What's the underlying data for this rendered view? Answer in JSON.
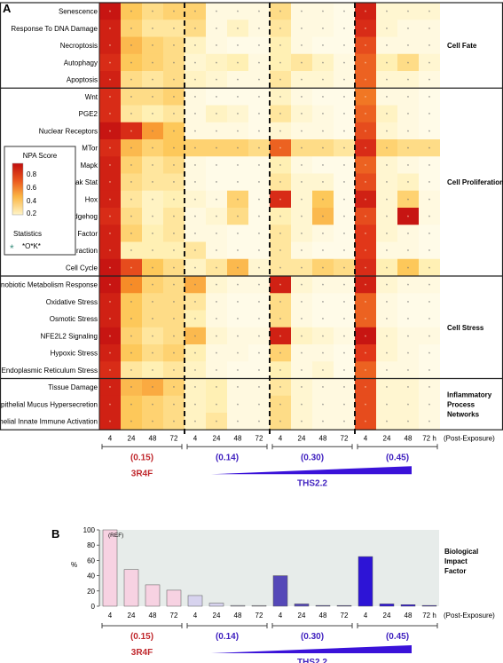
{
  "panel_a": {
    "letter": "A",
    "legend": {
      "title": "NPA Score",
      "ticks": [
        "0.8",
        "0.6",
        "0.4",
        "0.2"
      ],
      "stats_title": "Statistics",
      "stats_symbol": "*",
      "stats_label": "*O*K*"
    },
    "x_labels": [
      "4",
      "24",
      "48",
      "72",
      "4",
      "24",
      "48",
      "72",
      "4",
      "24",
      "48",
      "72",
      "4",
      "24",
      "48",
      "72 h"
    ],
    "x_suffix": "(Post-Exposure)",
    "group_labels": [
      "(0.15)",
      "(0.14)",
      "(0.30)",
      "(0.45)"
    ],
    "product_labels": [
      "3R4F",
      "THS2.2"
    ],
    "sections": [
      {
        "label": "Cell Fate",
        "rows": [
          "Senescence",
          "Response To DNA Damage",
          "Necroptosis",
          "Autophagy",
          "Apoptosis"
        ]
      },
      {
        "label": "Cell Proliferation",
        "rows": [
          "Wnt",
          "PGE2",
          "Nuclear Receptors",
          "MTor",
          "Mapk",
          "Jak Stat",
          "Hox",
          "Hedgehog",
          "Growth Factor",
          "Cell Interaction",
          "Cell Cycle"
        ]
      },
      {
        "label": "Cell Stress",
        "rows": [
          "Xenobiotic Metabolism Response",
          "Oxidative Stress",
          "Osmotic Stress",
          "NFE2L2 Signaling",
          "Hypoxic Stress",
          "Endoplasmic Reticulum Stress"
        ]
      },
      {
        "label": "Inflammatory Process Networks",
        "label_lines": [
          "Inflammatory",
          "Process",
          "Networks"
        ],
        "rows": [
          "Tissue Damage",
          "Epithelial Mucus Hypersecretion",
          "Epithelial Innate Immune Activation"
        ]
      }
    ]
  },
  "panel_b": {
    "letter": "B",
    "ylabel": "%",
    "ref_label": "(REF)",
    "side_label": [
      "Biological",
      "Impact",
      "Factor"
    ],
    "x_labels": [
      "4",
      "24",
      "48",
      "72",
      "4",
      "24",
      "48",
      "72",
      "4",
      "24",
      "48",
      "72",
      "4",
      "24",
      "48",
      "72 h"
    ],
    "x_suffix": "(Post-Exposure)",
    "group_labels": [
      "(0.15)",
      "(0.14)",
      "(0.30)",
      "(0.45)"
    ],
    "product_labels": [
      "3R4F",
      "THS2.2"
    ]
  },
  "colors": {
    "red_label": "#c0282d",
    "blue_label": "#3e1fbf",
    "heat_high": "#c00d0d",
    "heat_low": "#fffbe6"
  },
  "chart_data": [
    {
      "type": "heatmap",
      "ylabel": "NPA Score",
      "x": [
        "4",
        "24",
        "48",
        "72",
        "4",
        "24",
        "48",
        "72",
        "4",
        "24",
        "48",
        "72",
        "4",
        "24",
        "48",
        "72"
      ],
      "y": [
        "Senescence",
        "Response To DNA Damage",
        "Necroptosis",
        "Autophagy",
        "Apoptosis",
        "Wnt",
        "PGE2",
        "Nuclear Receptors",
        "MTor",
        "Mapk",
        "Jak Stat",
        "Hox",
        "Hedgehog",
        "Growth Factor",
        "Cell Interaction",
        "Cell Cycle",
        "Xenobiotic Metabolism Response",
        "Oxidative Stress",
        "Osmotic Stress",
        "NFE2L2 Signaling",
        "Hypoxic Stress",
        "Endoplasmic Reticulum Stress",
        "Tissue Damage",
        "Epithelial Mucus Hypersecretion",
        "Epithelial Innate Immune Activation"
      ],
      "values": [
        [
          0.95,
          0.4,
          0.3,
          0.35,
          0.35,
          0.05,
          0.05,
          0.05,
          0.3,
          0.05,
          0.05,
          0.02,
          0.9,
          0.1,
          0.1,
          0.1
        ],
        [
          0.9,
          0.35,
          0.25,
          0.25,
          0.3,
          0.05,
          0.15,
          0.05,
          0.25,
          0.05,
          0.05,
          0.02,
          0.85,
          0.1,
          0.05,
          0.05
        ],
        [
          0.9,
          0.45,
          0.35,
          0.3,
          0.15,
          0.05,
          0.02,
          0.02,
          0.2,
          0.05,
          0.02,
          0.02,
          0.75,
          0.05,
          0.05,
          0.05
        ],
        [
          0.85,
          0.4,
          0.35,
          0.3,
          0.1,
          0.15,
          0.2,
          0.05,
          0.2,
          0.25,
          0.15,
          0.05,
          0.7,
          0.2,
          0.3,
          0.1
        ],
        [
          0.9,
          0.3,
          0.25,
          0.3,
          0.15,
          0.1,
          0.05,
          0.05,
          0.25,
          0.1,
          0.1,
          0.05,
          0.7,
          0.1,
          0.1,
          0.05
        ],
        [
          0.85,
          0.3,
          0.3,
          0.35,
          0.05,
          0.02,
          0.02,
          0.02,
          0.15,
          0.05,
          0.02,
          0.02,
          0.65,
          0.05,
          0.05,
          0.02
        ],
        [
          0.85,
          0.25,
          0.2,
          0.25,
          0.05,
          0.15,
          0.1,
          0.02,
          0.25,
          0.1,
          0.05,
          0.02,
          0.7,
          0.15,
          0.05,
          0.02
        ],
        [
          0.95,
          0.85,
          0.55,
          0.4,
          0.05,
          0.05,
          0.05,
          0.02,
          0.1,
          0.05,
          0.05,
          0.02,
          0.75,
          0.1,
          0.05,
          0.02
        ],
        [
          0.85,
          0.45,
          0.35,
          0.4,
          0.35,
          0.35,
          0.35,
          0.3,
          0.7,
          0.3,
          0.3,
          0.25,
          0.85,
          0.35,
          0.3,
          0.3
        ],
        [
          0.9,
          0.35,
          0.25,
          0.3,
          0.05,
          0.02,
          0.02,
          0.02,
          0.2,
          0.05,
          0.02,
          0.02,
          0.7,
          0.1,
          0.05,
          0.02
        ],
        [
          0.9,
          0.3,
          0.25,
          0.25,
          0.05,
          0.02,
          0.02,
          0.02,
          0.25,
          0.1,
          0.1,
          0.02,
          0.75,
          0.1,
          0.15,
          0.02
        ],
        [
          0.9,
          0.25,
          0.15,
          0.2,
          0.1,
          0.05,
          0.35,
          0.02,
          0.85,
          0.1,
          0.4,
          0.02,
          0.9,
          0.1,
          0.35,
          0.05
        ],
        [
          0.85,
          0.3,
          0.15,
          0.25,
          0.05,
          0.1,
          0.3,
          0.02,
          0.2,
          0.1,
          0.45,
          0.02,
          0.75,
          0.1,
          0.95,
          0.05
        ],
        [
          0.9,
          0.35,
          0.2,
          0.25,
          0.05,
          0.05,
          0.02,
          0.02,
          0.25,
          0.1,
          0.05,
          0.02,
          0.8,
          0.1,
          0.05,
          0.02
        ],
        [
          0.9,
          0.2,
          0.2,
          0.2,
          0.25,
          0.05,
          0.02,
          0.02,
          0.25,
          0.05,
          0.02,
          0.02,
          0.8,
          0.05,
          0.05,
          0.02
        ],
        [
          0.95,
          0.75,
          0.4,
          0.3,
          0.15,
          0.25,
          0.45,
          0.1,
          0.25,
          0.25,
          0.35,
          0.3,
          0.85,
          0.2,
          0.4,
          0.2
        ],
        [
          0.95,
          0.6,
          0.35,
          0.3,
          0.5,
          0.1,
          0.05,
          0.05,
          0.9,
          0.1,
          0.05,
          0.05,
          0.9,
          0.1,
          0.05,
          0.05
        ],
        [
          0.9,
          0.4,
          0.3,
          0.3,
          0.25,
          0.05,
          0.02,
          0.02,
          0.3,
          0.05,
          0.02,
          0.02,
          0.7,
          0.05,
          0.02,
          0.02
        ],
        [
          0.9,
          0.4,
          0.3,
          0.3,
          0.2,
          0.05,
          0.02,
          0.02,
          0.3,
          0.05,
          0.02,
          0.02,
          0.7,
          0.05,
          0.02,
          0.02
        ],
        [
          0.95,
          0.35,
          0.25,
          0.3,
          0.45,
          0.1,
          0.05,
          0.05,
          0.9,
          0.15,
          0.1,
          0.05,
          0.95,
          0.1,
          0.05,
          0.05
        ],
        [
          0.9,
          0.4,
          0.3,
          0.35,
          0.2,
          0.05,
          0.05,
          0.02,
          0.35,
          0.05,
          0.05,
          0.02,
          0.8,
          0.1,
          0.05,
          0.02
        ],
        [
          0.85,
          0.25,
          0.2,
          0.25,
          0.15,
          0.05,
          0.02,
          0.02,
          0.2,
          0.05,
          0.1,
          0.02,
          0.7,
          0.05,
          0.05,
          0.02
        ],
        [
          0.9,
          0.45,
          0.5,
          0.35,
          0.15,
          0.2,
          0.05,
          0.05,
          0.25,
          0.1,
          0.05,
          0.05,
          0.75,
          0.1,
          0.1,
          0.05
        ],
        [
          0.9,
          0.4,
          0.35,
          0.3,
          0.15,
          0.2,
          0.05,
          0.05,
          0.3,
          0.1,
          0.05,
          0.05,
          0.75,
          0.1,
          0.1,
          0.05
        ],
        [
          0.9,
          0.4,
          0.35,
          0.3,
          0.15,
          0.25,
          0.05,
          0.05,
          0.3,
          0.1,
          0.05,
          0.05,
          0.75,
          0.1,
          0.1,
          0.05
        ]
      ],
      "colorbar_ticks": [
        0.2,
        0.4,
        0.6,
        0.8
      ]
    },
    {
      "type": "bar",
      "ylabel": "%",
      "categories": [
        "4",
        "24",
        "48",
        "72",
        "4",
        "24",
        "48",
        "72",
        "4",
        "24",
        "48",
        "72",
        "4",
        "24",
        "48",
        "72"
      ],
      "groups": [
        "(0.15)",
        "(0.14)",
        "(0.30)",
        "(0.45)"
      ],
      "values": [
        100,
        48,
        28,
        21,
        14,
        4,
        1,
        0.5,
        40,
        3,
        1,
        0.5,
        65,
        3,
        2,
        1
      ],
      "ylim": [
        0,
        100
      ],
      "yticks": [
        0,
        20,
        40,
        60,
        80,
        100
      ],
      "bar_colors": [
        "#f7d2e2",
        "#f7d2e2",
        "#f7d2e2",
        "#f7d2e2",
        "#d7d3ee",
        "#d7d3ee",
        "#d7d3ee",
        "#d7d3ee",
        "#5548b8",
        "#5548b8",
        "#5548b8",
        "#5548b8",
        "#2d14d6",
        "#2d14d6",
        "#2d14d6",
        "#2d14d6"
      ],
      "grid": false
    }
  ]
}
